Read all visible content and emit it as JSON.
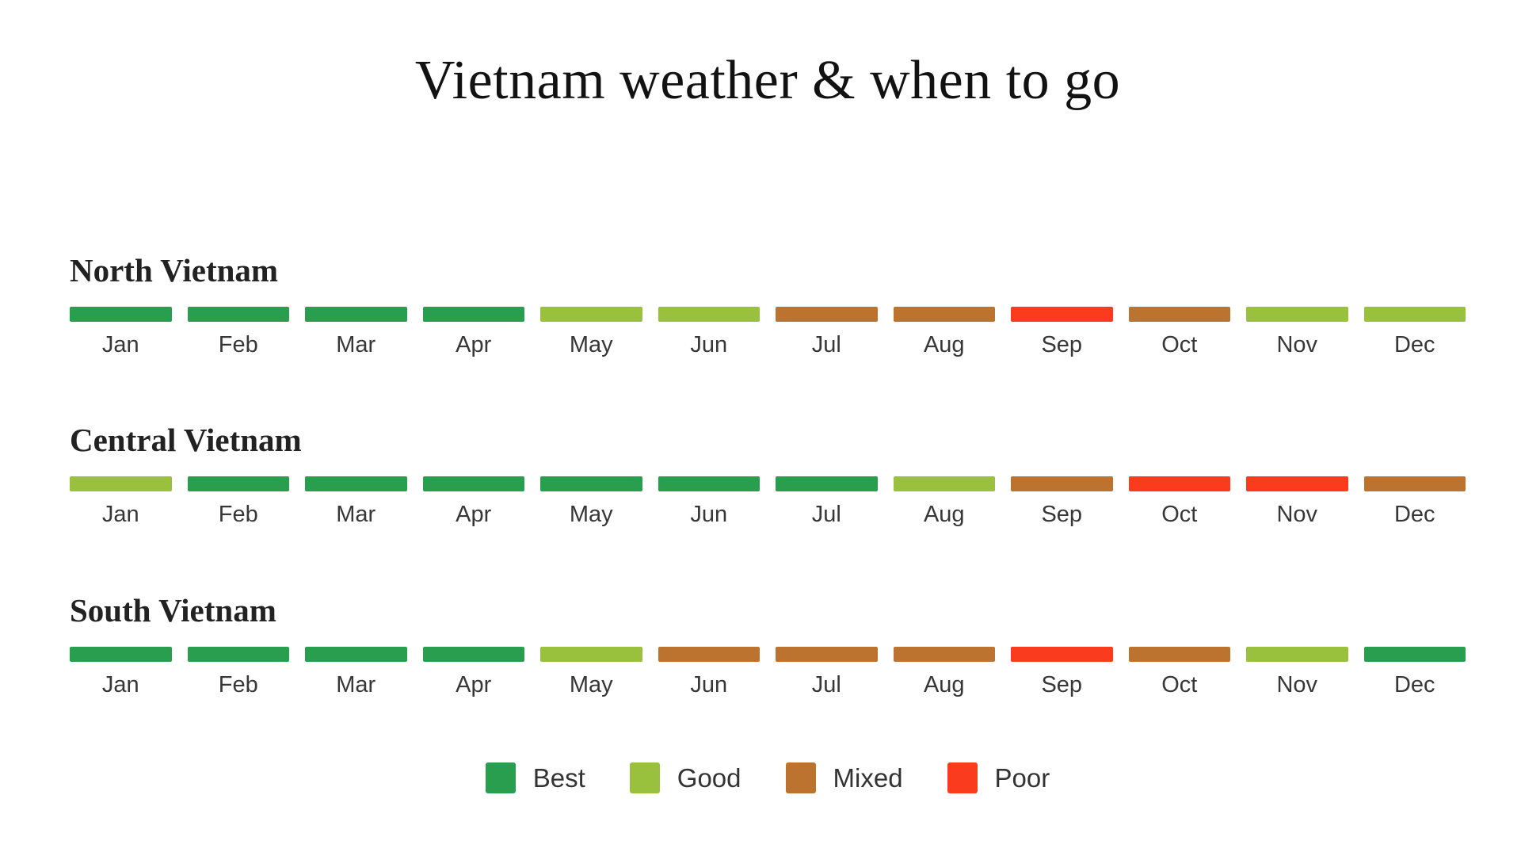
{
  "title": "Vietnam weather & when to go",
  "months": [
    "Jan",
    "Feb",
    "Mar",
    "Apr",
    "May",
    "Jun",
    "Jul",
    "Aug",
    "Sep",
    "Oct",
    "Nov",
    "Dec"
  ],
  "colors": {
    "best": "#2a9e4f",
    "good": "#99c13d",
    "mixed": "#bd7330",
    "poor": "#fa3b1e"
  },
  "legend": {
    "items": [
      {
        "key": "best",
        "label": "Best"
      },
      {
        "key": "good",
        "label": "Good"
      },
      {
        "key": "mixed",
        "label": "Mixed"
      },
      {
        "key": "poor",
        "label": "Poor"
      }
    ]
  },
  "regions": [
    {
      "name": "North Vietnam",
      "ratings": [
        "best",
        "best",
        "best",
        "best",
        "good",
        "good",
        "mixed",
        "mixed",
        "poor",
        "mixed",
        "good",
        "good"
      ]
    },
    {
      "name": "Central Vietnam",
      "ratings": [
        "good",
        "best",
        "best",
        "best",
        "best",
        "best",
        "best",
        "good",
        "mixed",
        "poor",
        "poor",
        "mixed"
      ]
    },
    {
      "name": "South Vietnam",
      "ratings": [
        "best",
        "best",
        "best",
        "best",
        "good",
        "mixed",
        "mixed",
        "mixed",
        "poor",
        "mixed",
        "good",
        "best"
      ]
    }
  ],
  "chart_data": {
    "type": "heatmap",
    "title": "Vietnam weather & when to go",
    "categories": [
      "Jan",
      "Feb",
      "Mar",
      "Apr",
      "May",
      "Jun",
      "Jul",
      "Aug",
      "Sep",
      "Oct",
      "Nov",
      "Dec"
    ],
    "series": [
      {
        "name": "North Vietnam",
        "values": [
          "Best",
          "Best",
          "Best",
          "Best",
          "Good",
          "Good",
          "Mixed",
          "Mixed",
          "Poor",
          "Mixed",
          "Good",
          "Good"
        ]
      },
      {
        "name": "Central Vietnam",
        "values": [
          "Good",
          "Best",
          "Best",
          "Best",
          "Best",
          "Best",
          "Best",
          "Good",
          "Mixed",
          "Poor",
          "Poor",
          "Mixed"
        ]
      },
      {
        "name": "South Vietnam",
        "values": [
          "Best",
          "Best",
          "Best",
          "Best",
          "Good",
          "Mixed",
          "Mixed",
          "Mixed",
          "Poor",
          "Mixed",
          "Good",
          "Best"
        ]
      }
    ],
    "legend_entries": [
      "Best",
      "Good",
      "Mixed",
      "Poor"
    ],
    "legend_position": "bottom",
    "scale_colors": {
      "Best": "#2a9e4f",
      "Good": "#99c13d",
      "Mixed": "#bd7330",
      "Poor": "#fa3b1e"
    }
  }
}
